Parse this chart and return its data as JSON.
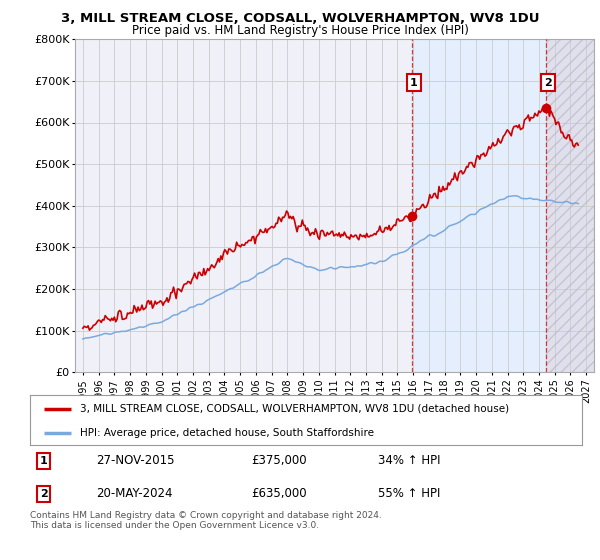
{
  "title1": "3, MILL STREAM CLOSE, CODSALL, WOLVERHAMPTON, WV8 1DU",
  "title2": "Price paid vs. HM Land Registry's House Price Index (HPI)",
  "legend_line1": "3, MILL STREAM CLOSE, CODSALL, WOLVERHAMPTON, WV8 1DU (detached house)",
  "legend_line2": "HPI: Average price, detached house, South Staffordshire",
  "point1_date": "27-NOV-2015",
  "point1_price": "£375,000",
  "point1_hpi": "34% ↑ HPI",
  "point2_date": "20-MAY-2024",
  "point2_price": "£635,000",
  "point2_hpi": "55% ↑ HPI",
  "footer": "Contains HM Land Registry data © Crown copyright and database right 2024.\nThis data is licensed under the Open Government Licence v3.0.",
  "red_color": "#cc0000",
  "blue_color": "#7aaadd",
  "blue_fill": "#ddeeff",
  "grid_color": "#cccccc",
  "plot_bg": "#f0f0f8",
  "hatch_bg": "#e0e0ec",
  "ylim": [
    0,
    800000
  ],
  "yticks": [
    0,
    100000,
    200000,
    300000,
    400000,
    500000,
    600000,
    700000,
    800000
  ],
  "ytick_labels": [
    "£0",
    "£100K",
    "£200K",
    "£300K",
    "£400K",
    "£500K",
    "£600K",
    "£700K",
    "£800K"
  ],
  "point1_x": 2015.9,
  "point1_y": 375000,
  "point2_x": 2024.42,
  "point2_y": 635000,
  "xmin": 1994.5,
  "xmax": 2027.5
}
